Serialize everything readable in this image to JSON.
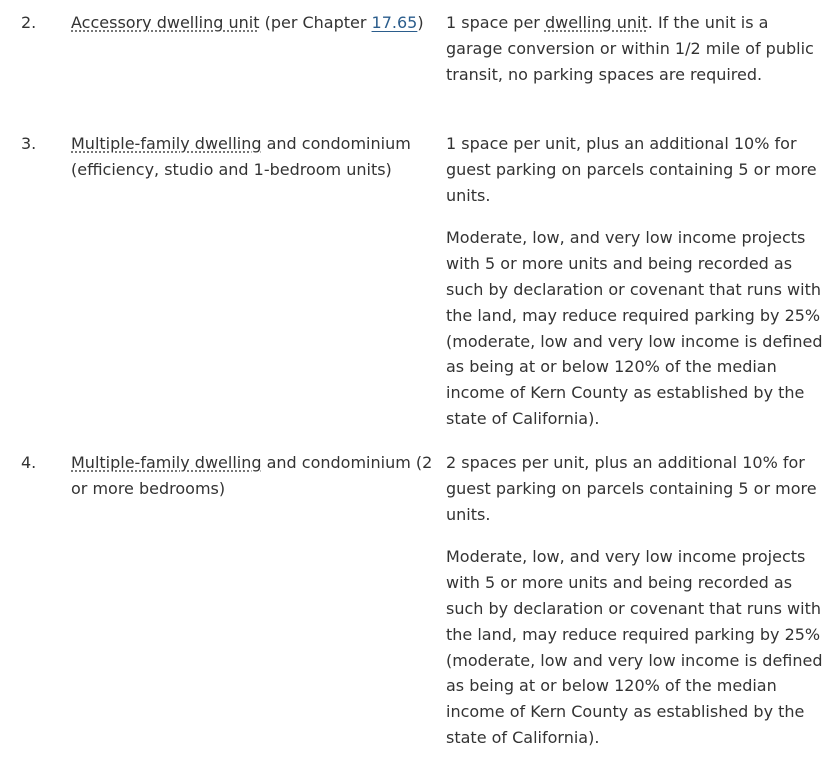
{
  "rows": [
    {
      "number": "2.",
      "use": {
        "term": "Accessory dwelling unit",
        "pre_link": " (per Chapter ",
        "link": "17.65",
        "post_link": ")"
      },
      "requirement": {
        "p1_pre": "1 space per ",
        "p1_term": "dwelling unit",
        "p1_post": ". If the unit is a garage conversion or within 1/2 mile of public transit, no parking spaces are required."
      }
    },
    {
      "number": "3.",
      "use": {
        "term": "Multiple-family dwelling",
        "rest": " and condominium (efficiency, studio and 1-bedroom units)"
      },
      "requirement": {
        "p1": "1 space per unit, plus an additional 10% for guest parking on parcels containing 5 or more units.",
        "p2": "Moderate, low, and very low income projects with 5 or more units and being recorded as such by declaration or covenant that runs with the land, may reduce required parking by 25% (moderate, low and very low income is defined as being at or below 120% of the median income of Kern County as established by the state of California)."
      }
    },
    {
      "number": "4.",
      "use": {
        "term": "Multiple-family dwelling",
        "rest": " and condominium (2 or more bedrooms)"
      },
      "requirement": {
        "p1": "2 spaces per unit, plus an additional 10% for guest parking on parcels containing 5 or more units.",
        "p2": "Moderate, low, and very low income projects with 5 or more units and being recorded as such by declaration or covenant that runs with the land, may reduce required parking by 25% (moderate, low and very low income is defined as being at or below 120% of the median income of Kern County as established by the state of California)."
      }
    }
  ]
}
